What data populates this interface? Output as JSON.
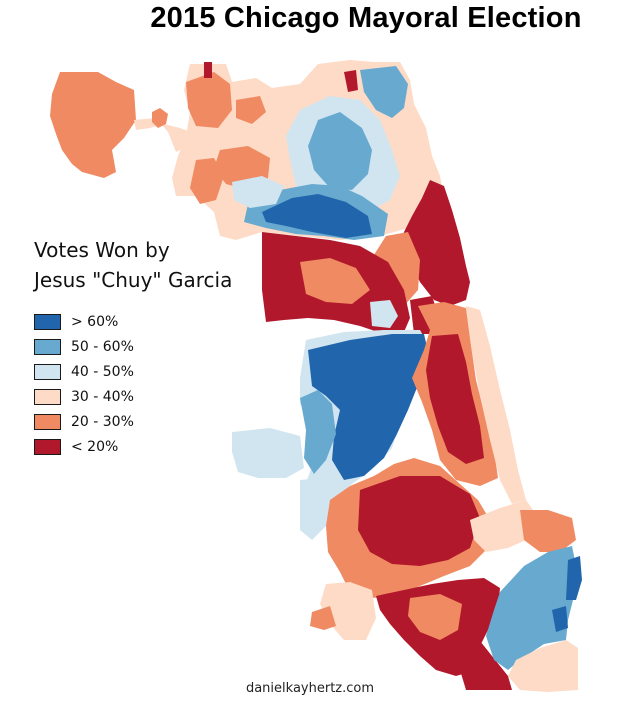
{
  "title": "2015 Chicago Mayoral Election",
  "legend": {
    "title_line1": "Votes Won by",
    "title_line2": "Jesus \"Chuy\" Garcia",
    "items": [
      {
        "label": "> 60%",
        "color": "#2166ac"
      },
      {
        "label": "50 - 60%",
        "color": "#67a9cf"
      },
      {
        "label": "40 - 50%",
        "color": "#d1e5f0"
      },
      {
        "label": "30 - 40%",
        "color": "#fddbc7"
      },
      {
        "label": "20 - 30%",
        "color": "#ef8a62"
      },
      {
        "label": "< 20%",
        "color": "#b2182b"
      }
    ]
  },
  "credit": "danielkayhertz.com"
}
